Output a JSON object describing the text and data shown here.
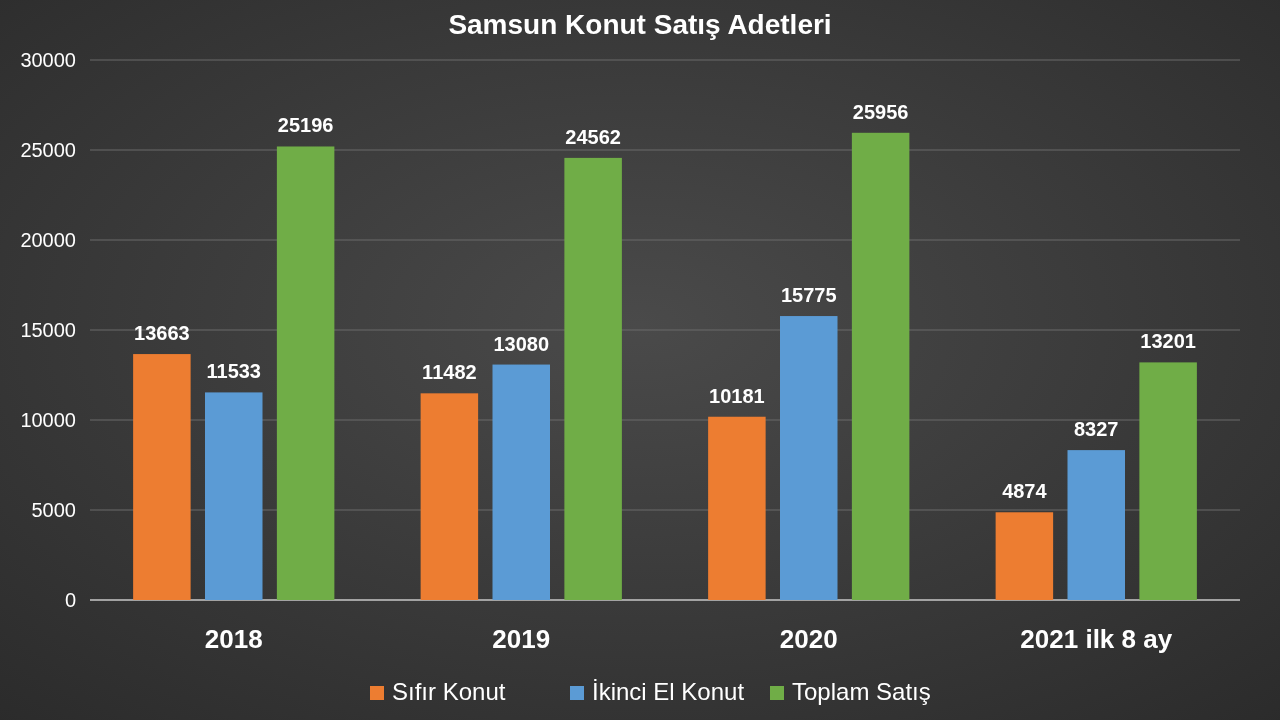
{
  "chart_data": {
    "type": "bar",
    "title": "Samsun Konut Satış Adetleri",
    "categories": [
      "2018",
      "2019",
      "2020",
      "2021 ilk 8 ay"
    ],
    "series": [
      {
        "name": "Sıfır Konut",
        "color": "#ed7d31",
        "values": [
          13663,
          11482,
          10181,
          4874
        ]
      },
      {
        "name": "İkinci El Konut",
        "color": "#5b9bd5",
        "values": [
          11533,
          13080,
          15775,
          8327
        ]
      },
      {
        "name": "Toplam Satış",
        "color": "#70ad47",
        "values": [
          25196,
          24562,
          25956,
          13201
        ]
      }
    ],
    "ylim": [
      0,
      30000
    ],
    "yticks": [
      0,
      5000,
      10000,
      15000,
      20000,
      25000,
      30000
    ],
    "grid": "y",
    "legend": "bottom",
    "data_labels": true
  }
}
